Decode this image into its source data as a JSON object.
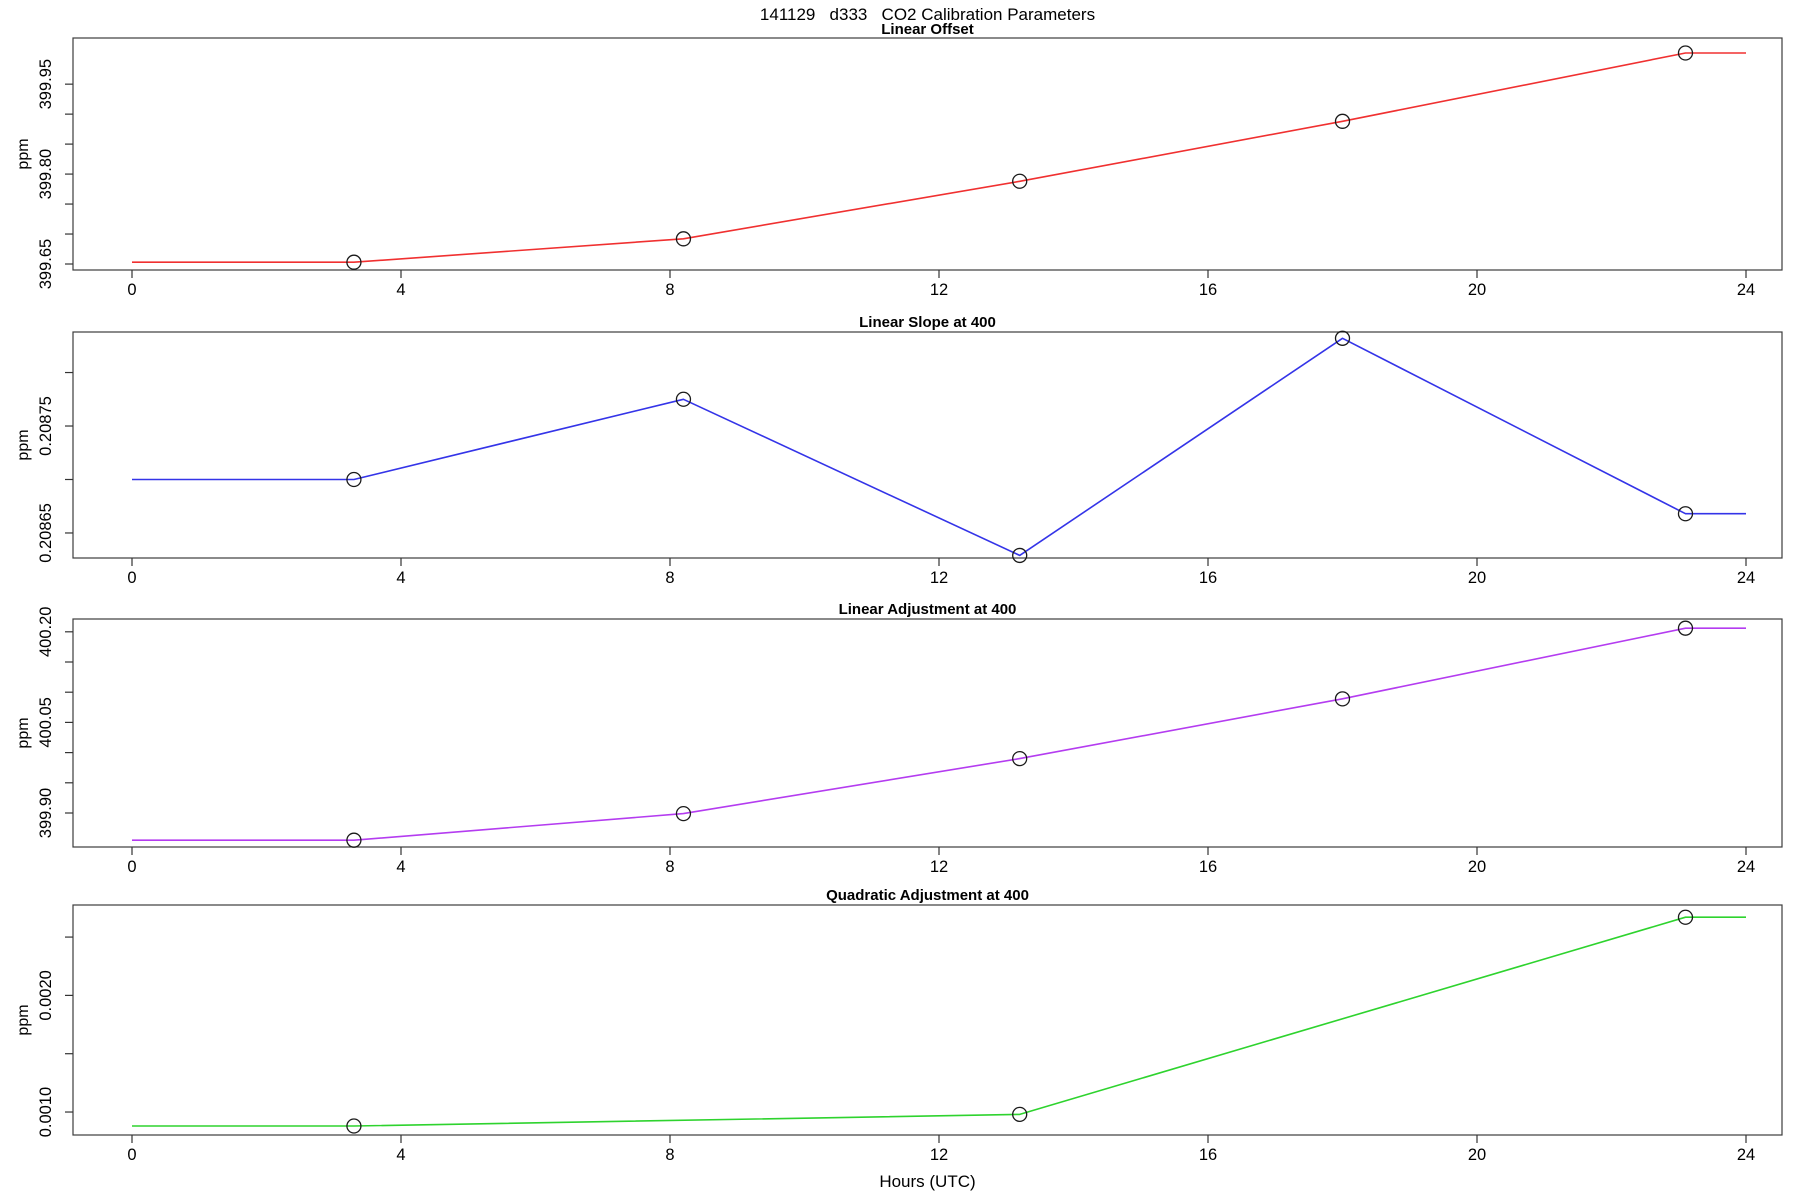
{
  "figure": {
    "main_title": "141129   d333   CO2 Calibration Parameters",
    "xlabel": "Hours (UTC)",
    "background": "#ffffff"
  },
  "axes": {
    "xlim": [
      -0.9,
      24.6
    ],
    "xticks": [
      {
        "v": 0,
        "label": "0"
      },
      {
        "v": 4,
        "label": "4"
      },
      {
        "v": 8,
        "label": "8"
      },
      {
        "v": 12,
        "label": "12"
      },
      {
        "v": 16,
        "label": "16"
      },
      {
        "v": 20,
        "label": "20"
      },
      {
        "v": 24,
        "label": "24"
      }
    ]
  },
  "chart_data": [
    {
      "type": "line",
      "title": "Linear Offset",
      "ylabel": "ppm",
      "color": "#f03030",
      "marker": "open-circle",
      "x": [
        3.3,
        8.2,
        13.2,
        18.0,
        23.1
      ],
      "y": [
        399.653,
        399.692,
        399.788,
        399.888,
        400.002
      ],
      "flat_edge_extension": [
        0,
        24
      ],
      "ylim": [
        399.64,
        400.027
      ],
      "yticks": [
        {
          "v": 399.65,
          "label": "399.65"
        },
        {
          "v": 399.7
        },
        {
          "v": 399.75
        },
        {
          "v": 399.8,
          "label": "399.80"
        },
        {
          "v": 399.85
        },
        {
          "v": 399.9
        },
        {
          "v": 399.95,
          "label": "399.95"
        }
      ]
    },
    {
      "type": "line",
      "title": "Linear Slope at 400",
      "ylabel": "ppm",
      "color": "#3434e8",
      "marker": "open-circle",
      "x": [
        3.3,
        8.2,
        13.2,
        18.0,
        23.1
      ],
      "y": [
        0.2087,
        0.208775,
        0.208629,
        0.208832,
        0.208668
      ],
      "flat_edge_extension": [
        0,
        24
      ],
      "ylim": [
        0.2086266,
        0.2088379
      ],
      "yticks": [
        {
          "v": 0.20865,
          "label": "0.20865"
        },
        {
          "v": 0.2087
        },
        {
          "v": 0.20875,
          "label": "0.20875"
        },
        {
          "v": 0.2088
        }
      ]
    },
    {
      "type": "line",
      "title": "Linear Adjustment at 400",
      "ylabel": "ppm",
      "color": "#b43cf0",
      "marker": "open-circle",
      "x": [
        3.3,
        8.2,
        13.2,
        18.0,
        23.1
      ],
      "y": [
        399.855,
        399.899,
        399.99,
        400.089,
        400.206
      ],
      "flat_edge_extension": [
        0,
        24
      ],
      "ylim": [
        399.8437,
        400.2212
      ],
      "yticks": [
        {
          "v": 399.9,
          "label": "399.90"
        },
        {
          "v": 399.95
        },
        {
          "v": 400.0
        },
        {
          "v": 400.05,
          "label": "400.05"
        },
        {
          "v": 400.1
        },
        {
          "v": 400.15
        },
        {
          "v": 400.2,
          "label": "400.20"
        }
      ]
    },
    {
      "type": "line",
      "title": "Quadratic Adjustment at 400",
      "ylabel": "ppm",
      "color": "#2ed32e",
      "marker": "open-circle",
      "x": [
        3.3,
        13.2,
        23.1
      ],
      "y": [
        0.00088,
        0.00098,
        0.00267
      ],
      "flat_edge_extension": [
        0,
        24
      ],
      "ylim": [
        0.000803,
        0.002775
      ],
      "yticks": [
        {
          "v": 0.001,
          "label": "0.0010"
        },
        {
          "v": 0.0015
        },
        {
          "v": 0.002,
          "label": "0.0020"
        },
        {
          "v": 0.0025
        }
      ]
    }
  ]
}
